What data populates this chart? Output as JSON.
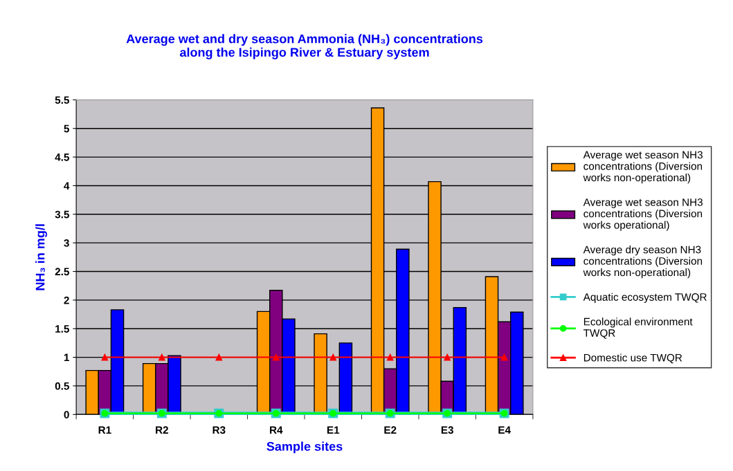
{
  "chart_data": {
    "type": "bar",
    "title": "Average wet and dry season Ammonia (NH₃) concentrations\nalong the Isipingo River & Estuary system",
    "xlabel": "Sample sites",
    "ylabel": "NH₃ in mg/l",
    "categories": [
      "R1",
      "R2",
      "R3",
      "R4",
      "E1",
      "E2",
      "E3",
      "E4"
    ],
    "series": [
      {
        "name": "Average wet season NH3 concentrations (Diversion works non-operational)",
        "color": "#ff9900",
        "values": [
          0.77,
          0.89,
          null,
          1.8,
          1.41,
          5.36,
          4.07,
          2.41
        ]
      },
      {
        "name": "Average wet season NH3 concentrations (Diversion works operational)",
        "color": "#800080",
        "values": [
          0.77,
          0.89,
          null,
          2.17,
          null,
          0.8,
          0.58,
          1.62
        ]
      },
      {
        "name": "Average dry season NH3 concentrations (Diversion works non-operational)",
        "color": "#0000ff",
        "values": [
          1.83,
          1.03,
          null,
          1.67,
          1.25,
          2.89,
          1.87,
          1.79
        ]
      },
      {
        "name": "Aquatic ecosystem TWQR",
        "type": "line",
        "marker": "square",
        "color": "#33cccc",
        "values": [
          0.02,
          0.02,
          0.02,
          0.02,
          0.02,
          0.02,
          0.02,
          0.02
        ]
      },
      {
        "name": "Ecological environment TWQR",
        "type": "line",
        "marker": "circle",
        "color": "#00ff00",
        "values": [
          0.02,
          0.02,
          0.02,
          0.02,
          0.02,
          0.02,
          0.02,
          0.02
        ]
      },
      {
        "name": "Domestic use TWQR",
        "type": "line",
        "marker": "triangle",
        "color": "#ff0000",
        "values": [
          1,
          1,
          1,
          1,
          1,
          1,
          1,
          1
        ]
      }
    ],
    "ylim": [
      0,
      5.5
    ],
    "yticks": [
      0,
      0.5,
      1,
      1.5,
      2,
      2.5,
      3,
      3.5,
      4,
      4.5,
      5,
      5.5
    ],
    "grid": "y",
    "legend": "right"
  }
}
